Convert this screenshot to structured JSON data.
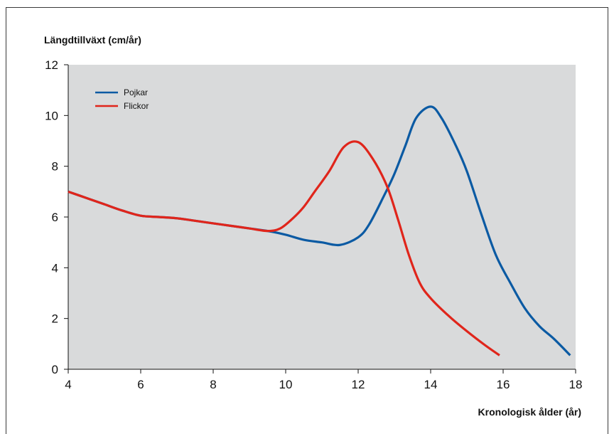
{
  "chart_data": {
    "type": "line",
    "title": "",
    "ylabel": "Längdtillväxt (cm/år)",
    "xlabel": "Kronologisk ålder (år)",
    "xlim": [
      4,
      18
    ],
    "ylim": [
      0,
      12
    ],
    "x_ticks": [
      4,
      6,
      8,
      10,
      12,
      14,
      16,
      18
    ],
    "y_ticks": [
      0,
      2,
      4,
      6,
      8,
      10,
      12
    ],
    "grid": false,
    "legend_position": "top-left",
    "background_color": "#d9dadb",
    "series": [
      {
        "name": "Pojkar",
        "color": "#0b5aa3",
        "points": [
          [
            4.0,
            7.0
          ],
          [
            4.5,
            6.75
          ],
          [
            5.0,
            6.5
          ],
          [
            5.5,
            6.25
          ],
          [
            6.0,
            6.05
          ],
          [
            6.5,
            6.0
          ],
          [
            7.0,
            5.95
          ],
          [
            7.5,
            5.85
          ],
          [
            8.0,
            5.75
          ],
          [
            8.5,
            5.65
          ],
          [
            9.0,
            5.55
          ],
          [
            9.5,
            5.45
          ],
          [
            10.0,
            5.3
          ],
          [
            10.5,
            5.1
          ],
          [
            11.0,
            5.0
          ],
          [
            11.5,
            4.9
          ],
          [
            12.0,
            5.2
          ],
          [
            12.3,
            5.7
          ],
          [
            12.7,
            6.8
          ],
          [
            13.0,
            7.7
          ],
          [
            13.3,
            8.8
          ],
          [
            13.6,
            9.9
          ],
          [
            14.0,
            10.35
          ],
          [
            14.3,
            9.9
          ],
          [
            14.7,
            8.8
          ],
          [
            15.0,
            7.8
          ],
          [
            15.4,
            6.1
          ],
          [
            15.8,
            4.5
          ],
          [
            16.2,
            3.4
          ],
          [
            16.6,
            2.4
          ],
          [
            17.0,
            1.7
          ],
          [
            17.4,
            1.2
          ],
          [
            17.85,
            0.55
          ]
        ]
      },
      {
        "name": "Flickor",
        "color": "#e0251b",
        "points": [
          [
            4.0,
            7.0
          ],
          [
            4.5,
            6.75
          ],
          [
            5.0,
            6.5
          ],
          [
            5.5,
            6.25
          ],
          [
            6.0,
            6.05
          ],
          [
            6.5,
            6.0
          ],
          [
            7.0,
            5.95
          ],
          [
            7.5,
            5.85
          ],
          [
            8.0,
            5.75
          ],
          [
            8.5,
            5.65
          ],
          [
            9.0,
            5.55
          ],
          [
            9.5,
            5.45
          ],
          [
            9.85,
            5.55
          ],
          [
            10.2,
            5.95
          ],
          [
            10.5,
            6.4
          ],
          [
            10.8,
            7.0
          ],
          [
            11.2,
            7.8
          ],
          [
            11.6,
            8.75
          ],
          [
            12.0,
            8.95
          ],
          [
            12.4,
            8.3
          ],
          [
            12.8,
            7.2
          ],
          [
            13.1,
            5.9
          ],
          [
            13.4,
            4.5
          ],
          [
            13.7,
            3.4
          ],
          [
            14.0,
            2.8
          ],
          [
            14.5,
            2.1
          ],
          [
            15.0,
            1.5
          ],
          [
            15.5,
            0.95
          ],
          [
            15.9,
            0.55
          ]
        ]
      }
    ]
  }
}
